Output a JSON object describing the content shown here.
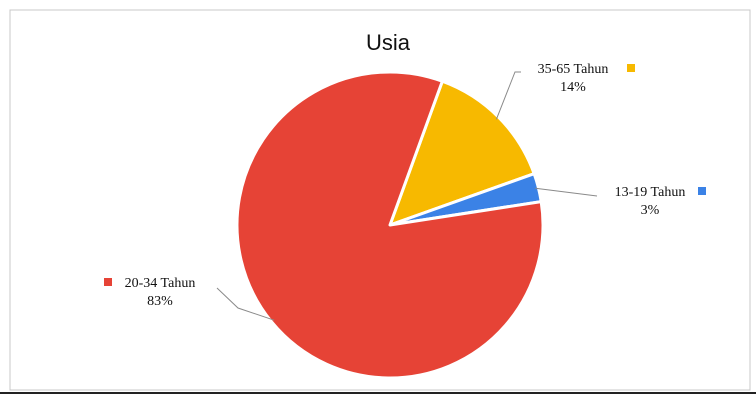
{
  "chart_data": {
    "type": "pie",
    "title": "Usia",
    "slices": [
      {
        "label": "35-65 Tahun",
        "value": 14,
        "value_label": "14%",
        "color": "#F7B900"
      },
      {
        "label": "13-19 Tahun",
        "value": 3,
        "value_label": "3%",
        "color": "#3B82E6"
      },
      {
        "label": "20-34 Tahun",
        "value": 83,
        "value_label": "83%",
        "color": "#E64336"
      }
    ],
    "legend": "none",
    "data_labels": "outside-with-leader-lines"
  }
}
